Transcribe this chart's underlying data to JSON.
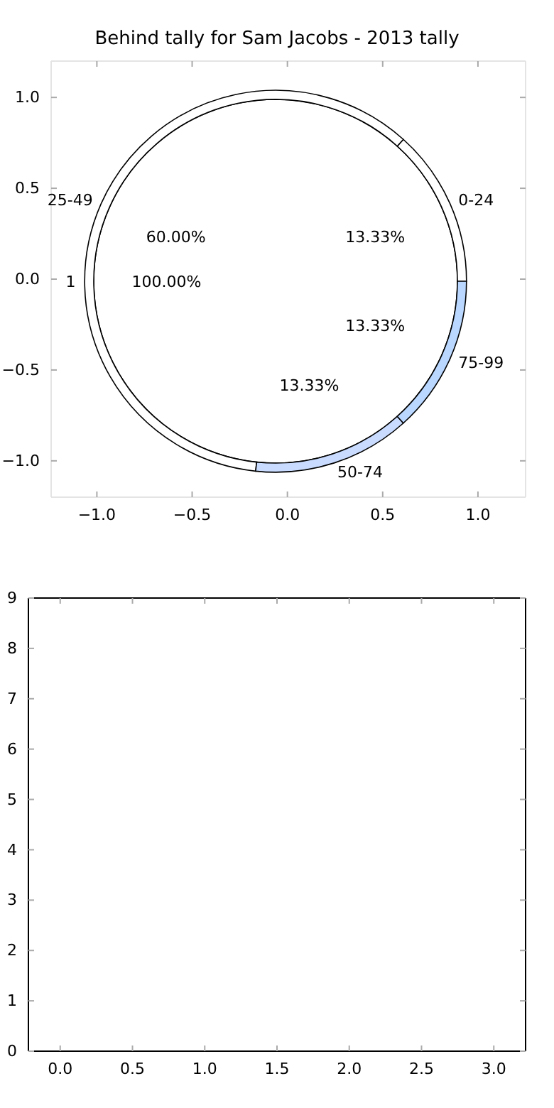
{
  "chart_data": [
    {
      "type": "scatter",
      "title": "Behind tally for Sam Jacobs - 2013 tally",
      "xlim": [
        -1.24,
        1.25
      ],
      "ylim": [
        -1.2,
        1.2
      ],
      "xticks": [
        {
          "value": -1,
          "label": "−1.0"
        },
        {
          "value": -0.5,
          "label": "−0.5"
        },
        {
          "value": 0,
          "label": "0.0"
        },
        {
          "value": 0.5,
          "label": "0.5"
        },
        {
          "value": 1,
          "label": "1.0"
        }
      ],
      "yticks": [
        {
          "value": -1,
          "label": "−1.0"
        },
        {
          "value": -0.5,
          "label": "−0.5"
        },
        {
          "value": 0,
          "label": "0.0"
        },
        {
          "value": 0.5,
          "label": "0.5"
        },
        {
          "value": 1,
          "label": "1.0"
        }
      ]
    },
    {
      "type": "pie",
      "categories": [
        "1"
      ],
      "values": [
        100
      ],
      "colors": [
        "#ffffff"
      ],
      "value_labels": [
        "100.00%"
      ]
    },
    {
      "type": "donut",
      "categories": [
        "0-24",
        "25-49",
        "50-74",
        "75-99"
      ],
      "values": [
        13.33,
        60,
        13.33,
        13.33
      ],
      "colors": [
        "#ffffff",
        "#ffffff",
        "#c9dcff",
        "#b9d7ff"
      ],
      "value_labels": [
        "13.33%",
        "60.00%",
        "13.33%",
        "13.33%"
      ]
    },
    {
      "type": "scatter",
      "xlim": [
        -0.22,
        3.22
      ],
      "ylim": [
        0,
        9
      ],
      "xticks": [
        {
          "value": 0,
          "label": "0.0"
        },
        {
          "value": 0.5,
          "label": "0.5"
        },
        {
          "value": 1,
          "label": "1.0"
        },
        {
          "value": 1.5,
          "label": "1.5"
        },
        {
          "value": 2,
          "label": "2.0"
        },
        {
          "value": 2.5,
          "label": "2.5"
        },
        {
          "value": 3,
          "label": "3.0"
        }
      ],
      "yticks": [
        0,
        1,
        2,
        3,
        4,
        5,
        6,
        7,
        8,
        9
      ]
    }
  ]
}
